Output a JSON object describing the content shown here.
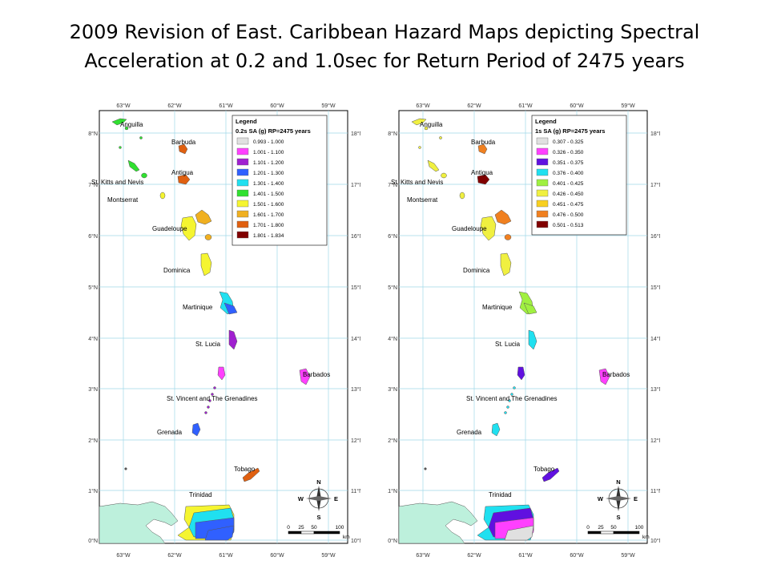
{
  "title": {
    "line1": "2009 Revision of East. Caribbean Hazard Maps depicting Spectral",
    "line2": "Acceleration at 0.2 and 1.0sec for Return Period of 2475 years"
  },
  "axes": {
    "lon_ticks": [
      "63°W",
      "62°W",
      "61°W",
      "60°W",
      "59°W"
    ],
    "lat_ticks": [
      "18°N",
      "17°N",
      "16°N",
      "15°N",
      "14°N",
      "13°N",
      "12°N",
      "11°N",
      "10°N"
    ]
  },
  "place_labels": [
    "Anguilla",
    "Barbuda",
    "St. Kitts and Nevis",
    "Antigua",
    "Montserrat",
    "Guadeloupe",
    "Dominica",
    "Martinique",
    "St. Lucia",
    "Barbados",
    "St. Vincent and The Grenadines",
    "Grenada",
    "Tobago",
    "Trinidad"
  ],
  "scale_bar": {
    "labels": [
      "0",
      "25",
      "50",
      "100"
    ],
    "unit": "km"
  },
  "compass": {
    "n": "N",
    "s": "S",
    "e": "E",
    "w": "W"
  },
  "maps": [
    {
      "legend_title": "Legend",
      "legend_subtitle": "0.2s SA (g) RP=2475 years",
      "legend_items": [
        {
          "label": "0.993 - 1.000",
          "color": "#e0e0e0"
        },
        {
          "label": "1.001 - 1.100",
          "color": "#ff40ff"
        },
        {
          "label": "1.101 - 1.200",
          "color": "#a020d0"
        },
        {
          "label": "1.201 - 1.300",
          "color": "#3060ff"
        },
        {
          "label": "1.301 - 1.400",
          "color": "#20e0f0"
        },
        {
          "label": "1.401 - 1.500",
          "color": "#30e030"
        },
        {
          "label": "1.501 - 1.600",
          "color": "#f5f530"
        },
        {
          "label": "1.601 - 1.700",
          "color": "#f0b020"
        },
        {
          "label": "1.701 - 1.800",
          "color": "#e06010"
        },
        {
          "label": "1.801 - 1.834",
          "color": "#800000"
        }
      ],
      "region_colors": {
        "anguilla": "#30e030",
        "skn": "#30e030",
        "barbuda": "#e06010",
        "antigua": "#e06010",
        "montserrat": "#f5f530",
        "guadeloupe": "#f5f530",
        "guadeloupe_e": "#f0b020",
        "dominica": "#f5f530",
        "martinique": "#20e0f0",
        "martinique_s": "#3060ff",
        "stlucia": "#a020d0",
        "stvincent": "#ff40ff",
        "grenadines": "#a020d0",
        "grenada": "#3060ff",
        "barbados": "#ff40ff",
        "tobago": "#e06010",
        "trinidad_bands": [
          "#f5f530",
          "#20e0f0",
          "#3060ff",
          "#3060ff"
        ]
      }
    },
    {
      "legend_title": "Legend",
      "legend_subtitle": "1s SA (g) RP=2475 years",
      "legend_items": [
        {
          "label": "0.307 - 0.325",
          "color": "#e0e0e0"
        },
        {
          "label": "0.326 - 0.350",
          "color": "#ff40ff"
        },
        {
          "label": "0.351 - 0.375",
          "color": "#6010e0"
        },
        {
          "label": "0.376 - 0.400",
          "color": "#20e0f0"
        },
        {
          "label": "0.401 - 0.425",
          "color": "#a0f040"
        },
        {
          "label": "0.426 - 0.450",
          "color": "#f0f040"
        },
        {
          "label": "0.451 - 0.475",
          "color": "#f8d020"
        },
        {
          "label": "0.476 - 0.500",
          "color": "#f08020"
        },
        {
          "label": "0.501 - 0.513",
          "color": "#800000"
        }
      ],
      "region_colors": {
        "anguilla": "#f0f040",
        "skn": "#f0f040",
        "barbuda": "#f08020",
        "antigua": "#800000",
        "montserrat": "#f0f040",
        "guadeloupe": "#f0f040",
        "guadeloupe_e": "#f08020",
        "dominica": "#f0f040",
        "martinique": "#a0f040",
        "martinique_s": "#a0f040",
        "stlucia": "#20e0f0",
        "stvincent": "#6010e0",
        "grenadines": "#20e0f0",
        "grenada": "#20e0f0",
        "barbados": "#ff40ff",
        "tobago": "#6010e0",
        "trinidad_bands": [
          "#20e0f0",
          "#6010e0",
          "#ff40ff",
          "#e0e0e0"
        ]
      }
    }
  ]
}
